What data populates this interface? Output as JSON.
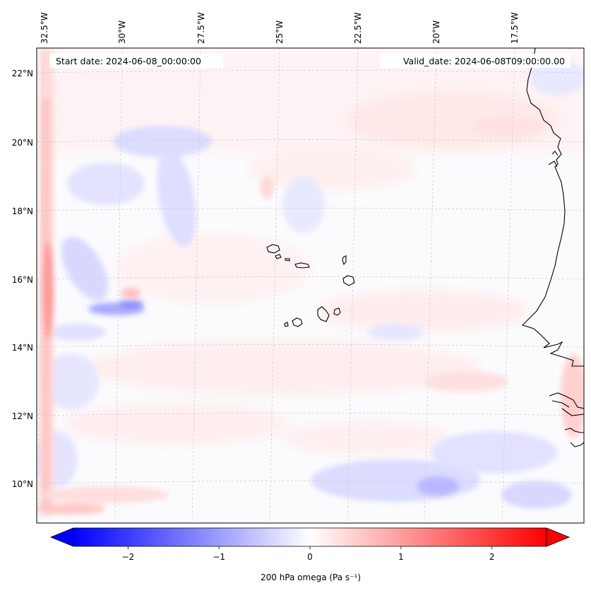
{
  "map": {
    "start_date": "Start date: 2024-06-08_00:00:00",
    "valid_date": "Valid_date: 2024-06-08T09:00:00.00",
    "lon_labels": [
      "32.5°W",
      "30°W",
      "27.5°W",
      "25°W",
      "22.5°W",
      "20°W",
      "17.5°W"
    ],
    "lat_labels": [
      "22°N",
      "20°N",
      "18°N",
      "16°N",
      "14°N",
      "12°N",
      "10°N"
    ],
    "lon_range_deg_w": [
      33.0,
      15.5
    ],
    "lat_range_deg_n": [
      8.8,
      22.8
    ]
  },
  "colorbar": {
    "title": "200 hPa omega (Pa s⁻¹)",
    "min": -2.6,
    "max": 2.6,
    "ticks": [
      -2,
      -1,
      0,
      1,
      2
    ],
    "tick_labels": [
      "−2",
      "−1",
      "0",
      "1",
      "2"
    ],
    "color_low": "#0000ff",
    "color_mid": "#ffffff",
    "color_high": "#ff0000"
  },
  "colors": {
    "coastline": "#000000",
    "gridline": "#c8c8c8"
  }
}
